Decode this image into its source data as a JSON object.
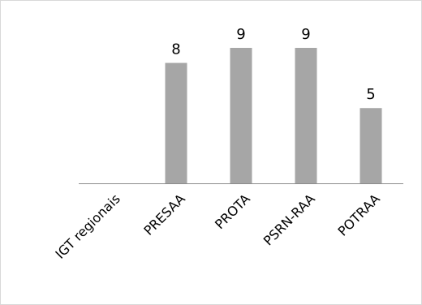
{
  "chart_data": {
    "type": "bar",
    "categories": [
      "IGT regionais",
      "PRESAA",
      "PROTA",
      "PSRN-RAA",
      "POTRAA"
    ],
    "values": [
      null,
      8,
      9,
      9,
      5
    ],
    "data_labels": [
      "",
      "8",
      "9",
      "9",
      "5"
    ],
    "title": "",
    "xlabel": "",
    "ylabel": "",
    "ylim": [
      0,
      9
    ],
    "grid": false,
    "legend": "none",
    "colors": {
      "bar": "#a6a6a6",
      "axis": "#8c8c8c",
      "border": "#d9d9d9"
    }
  }
}
